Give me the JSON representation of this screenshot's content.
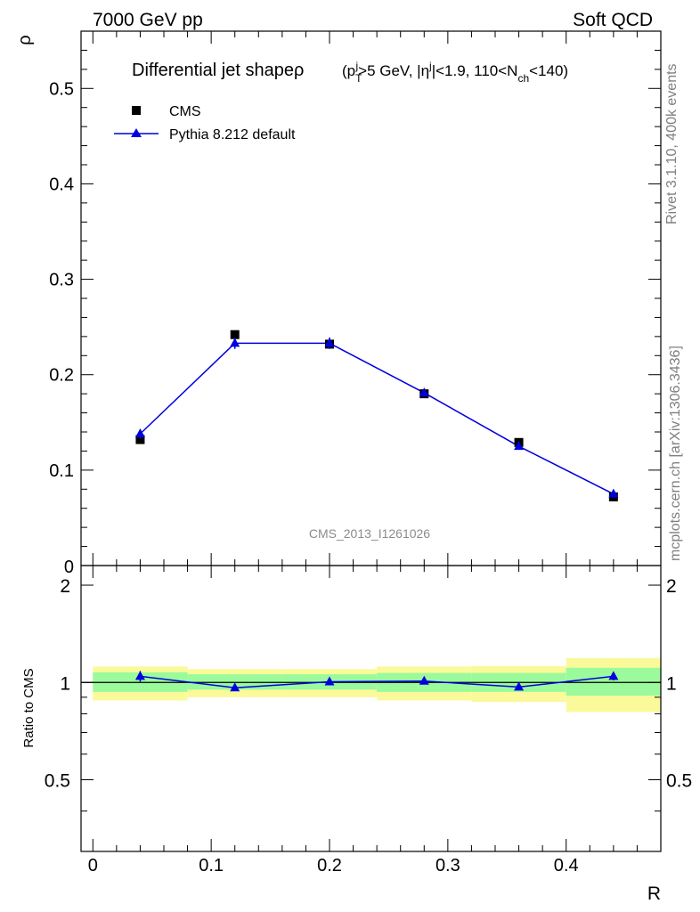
{
  "header": {
    "left": "7000 GeV pp",
    "right": "Soft QCD"
  },
  "side_labels": {
    "rivet": "Rivet 3.1.10,  400k events",
    "mcplots": "mcplots.cern.ch [arXiv:1306.3436]"
  },
  "chart_data": [
    {
      "panel": "main",
      "type": "scatter",
      "title_main": "Differential jet shape",
      "title_rho": "ρ",
      "title_cuts": "(p_T^j>5 GeV, |η^j|<1.9, 110<N_ch<140)",
      "title_parts": [
        "(p",
        "T",
        "j",
        ">5 GeV, |η",
        "j",
        "|<1.9, 110<N",
        "ch",
        "<140)"
      ],
      "ylabel": "ρ",
      "xlabel": "R",
      "xlim": [
        -0.01,
        0.48
      ],
      "ylim": [
        0,
        0.56
      ],
      "y_ticks": [
        0.1,
        0.2,
        0.3,
        0.4,
        0.5
      ],
      "y_tick_labels": [
        "0.1",
        "0.2",
        "0.3",
        "0.4",
        "0.5"
      ],
      "y_zero_label": "0",
      "watermark": "CMS_2013_I1261026",
      "legend": [
        "CMS",
        "Pythia 8.212 default"
      ],
      "series": [
        {
          "name": "CMS",
          "marker": "square",
          "color": "#000000",
          "x": [
            0.04,
            0.12,
            0.2,
            0.28,
            0.36,
            0.44
          ],
          "values": [
            0.132,
            0.242,
            0.232,
            0.18,
            0.129,
            0.072
          ]
        },
        {
          "name": "Pythia 8.212 default",
          "marker": "triangle",
          "color": "#0000dd",
          "x": [
            0.04,
            0.12,
            0.2,
            0.28,
            0.36,
            0.44
          ],
          "values": [
            0.138,
            0.233,
            0.233,
            0.181,
            0.125,
            0.075
          ],
          "errors": [
            0.005,
            0.006,
            0.006,
            0.004,
            0.003,
            0.003
          ]
        }
      ]
    },
    {
      "panel": "ratio",
      "type": "scatter",
      "ylabel": "Ratio to CMS",
      "xlabel": "R",
      "xlim": [
        -0.01,
        0.48
      ],
      "ylim": [
        0.3,
        2.3
      ],
      "y_ticks": [
        0.5,
        1,
        2
      ],
      "y_tick_labels": [
        "0.5",
        "1",
        "2"
      ],
      "x_ticks": [
        0,
        0.1,
        0.2,
        0.3,
        0.4
      ],
      "x_tick_labels": [
        "0",
        "0.1",
        "0.2",
        "0.3",
        "0.4"
      ],
      "bands": [
        {
          "x0": 0.0,
          "x1": 0.08,
          "stat_lo": 0.935,
          "stat_hi": 1.075,
          "tot_lo": 0.88,
          "tot_hi": 1.12
        },
        {
          "x0": 0.08,
          "x1": 0.16,
          "stat_lo": 0.95,
          "stat_hi": 1.06,
          "tot_lo": 0.9,
          "tot_hi": 1.1
        },
        {
          "x0": 0.16,
          "x1": 0.24,
          "stat_lo": 0.95,
          "stat_hi": 1.06,
          "tot_lo": 0.9,
          "tot_hi": 1.1
        },
        {
          "x0": 0.24,
          "x1": 0.32,
          "stat_lo": 0.935,
          "stat_hi": 1.07,
          "tot_lo": 0.88,
          "tot_hi": 1.12
        },
        {
          "x0": 0.32,
          "x1": 0.4,
          "stat_lo": 0.935,
          "stat_hi": 1.07,
          "tot_lo": 0.87,
          "tot_hi": 1.125
        },
        {
          "x0": 0.4,
          "x1": 0.48,
          "stat_lo": 0.91,
          "stat_hi": 1.11,
          "tot_lo": 0.81,
          "tot_hi": 1.19
        }
      ],
      "series": [
        {
          "name": "Pythia 8.212 default",
          "marker": "triangle",
          "color": "#0000dd",
          "x": [
            0.04,
            0.12,
            0.2,
            0.28,
            0.36,
            0.44
          ],
          "values": [
            1.045,
            0.963,
            1.005,
            1.01,
            0.968,
            1.045
          ],
          "errors": [
            0.04,
            0.02,
            0.02,
            0.02,
            0.02,
            0.03
          ]
        }
      ]
    }
  ],
  "colors": {
    "stat_band": "#9bfa9b",
    "tot_band": "#fafa9b",
    "mc": "#0000dd",
    "data": "#000000"
  }
}
